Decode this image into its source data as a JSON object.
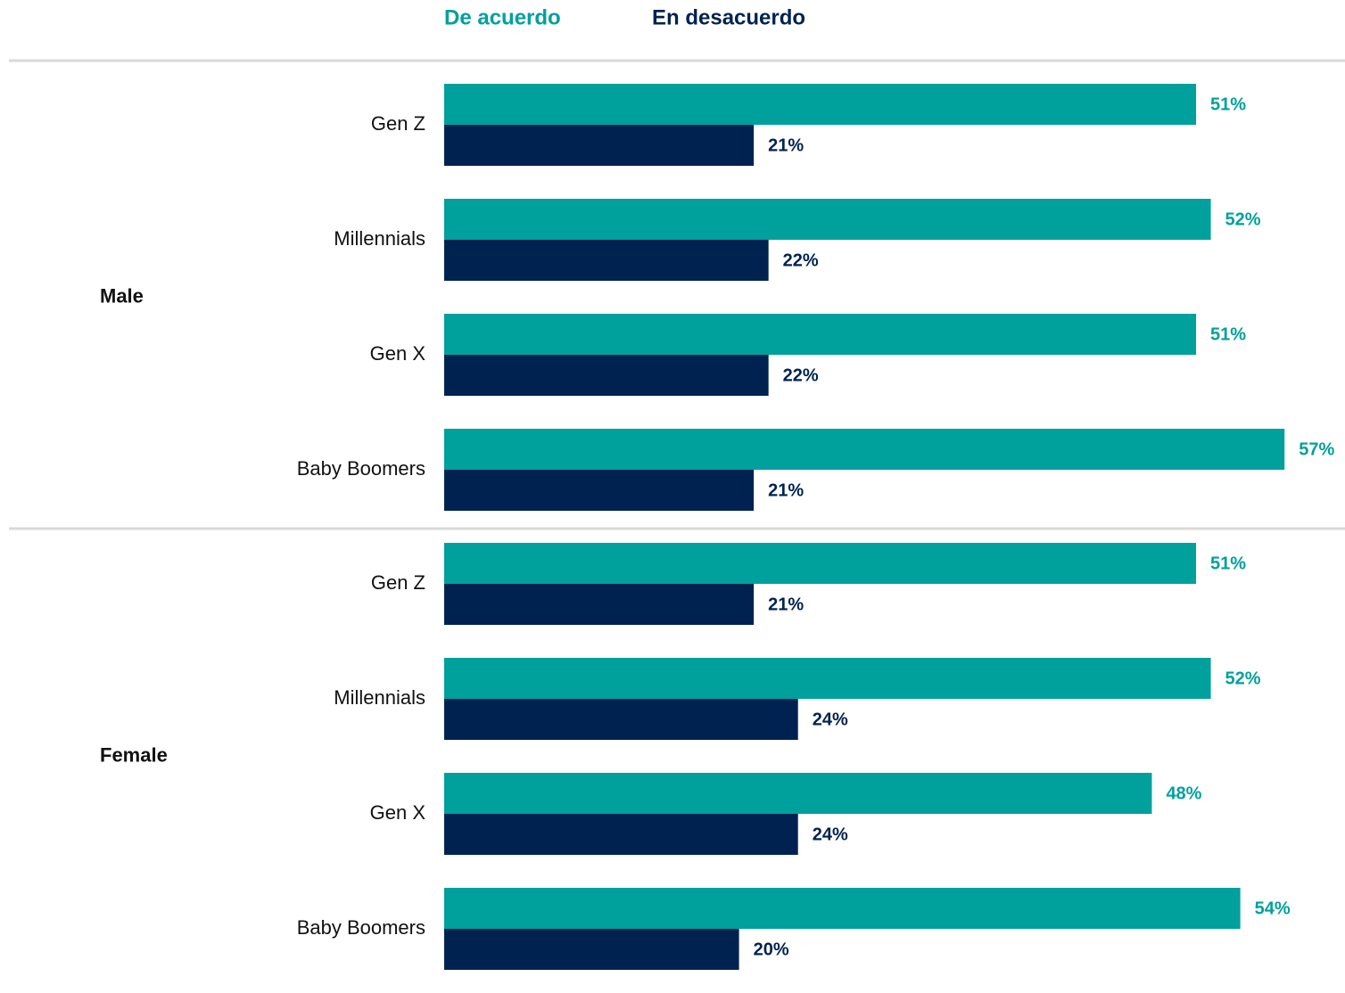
{
  "chart_data": {
    "type": "bar",
    "orientation": "horizontal",
    "groups": [
      {
        "label": "Male",
        "categories": [
          "Gen Z",
          "Millennials",
          "Gen X",
          "Baby Boomers"
        ]
      },
      {
        "label": "Female",
        "categories": [
          "Gen Z",
          "Millennials",
          "Gen X",
          "Baby Boomers"
        ]
      }
    ],
    "series": [
      {
        "name": "De acuerdo",
        "color": "#00a09d",
        "values": [
          51,
          52,
          51,
          57,
          51,
          52,
          48,
          54
        ],
        "value_labels": [
          "51%",
          "52%",
          "51%",
          "57%",
          "51%",
          "52%",
          "48%",
          "54%"
        ]
      },
      {
        "name": "En desacuerdo",
        "color": "#002251",
        "values": [
          21,
          22,
          22,
          21,
          21,
          24,
          24,
          20
        ],
        "value_labels": [
          "21%",
          "22%",
          "22%",
          "21%",
          "21%",
          "24%",
          "24%",
          "20%"
        ]
      }
    ]
  }
}
